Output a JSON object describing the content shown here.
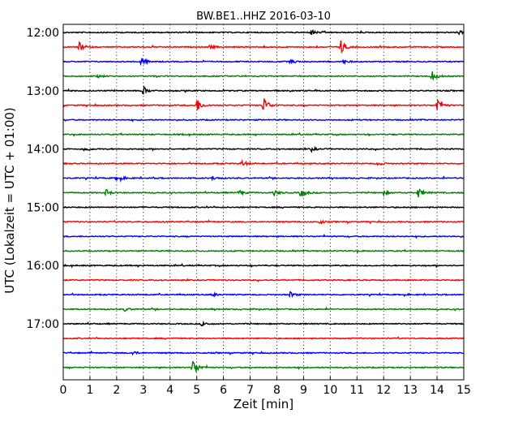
{
  "chart_data": {
    "type": "line",
    "title": "BW.BE1..HHZ 2016-03-10",
    "xlabel": "Zeit  [min]",
    "ylabel": "UTC (Lokalzeit = UTC + 01:00)",
    "xlim": [
      0,
      15
    ],
    "x_ticks": [
      "0",
      "1",
      "2",
      "3",
      "4",
      "5",
      "6",
      "7",
      "8",
      "9",
      "10",
      "11",
      "12",
      "13",
      "14",
      "15"
    ],
    "y_tick_labels": [
      "12:00",
      "13:00",
      "14:00",
      "15:00",
      "16:00",
      "17:00"
    ],
    "trace_times": [
      "12:00",
      "12:15",
      "12:30",
      "12:45",
      "13:00",
      "13:15",
      "13:30",
      "13:45",
      "14:00",
      "14:15",
      "14:30",
      "14:45",
      "15:00",
      "15:15",
      "15:30",
      "15:45",
      "16:00",
      "16:15",
      "16:30",
      "16:45",
      "17:00",
      "17:15",
      "17:30",
      "17:45"
    ],
    "trace_colors": [
      "#000000",
      "#ff0000",
      "#0000ff",
      "#008000"
    ],
    "grid": "vertical dotted at each minute",
    "events": [
      {
        "trace": "12:00",
        "minute": 9.3,
        "amplitude": 0.35
      },
      {
        "trace": "12:00",
        "minute": 14.8,
        "amplitude": 0.25
      },
      {
        "trace": "12:15",
        "minute": 0.6,
        "amplitude": 0.6
      },
      {
        "trace": "12:15",
        "minute": 10.4,
        "amplitude": 1.0
      },
      {
        "trace": "12:15",
        "minute": 5.5,
        "amplitude": 0.25
      },
      {
        "trace": "12:30",
        "minute": 2.9,
        "amplitude": 0.7
      },
      {
        "trace": "12:30",
        "minute": 8.5,
        "amplitude": 0.3
      },
      {
        "trace": "12:30",
        "minute": 10.5,
        "amplitude": 0.25
      },
      {
        "trace": "12:45",
        "minute": 13.8,
        "amplitude": 0.75
      },
      {
        "trace": "12:45",
        "minute": 1.3,
        "amplitude": 0.2
      },
      {
        "trace": "13:00",
        "minute": 3.0,
        "amplitude": 0.55
      },
      {
        "trace": "13:15",
        "minute": 5.0,
        "amplitude": 1.0
      },
      {
        "trace": "13:15",
        "minute": 7.5,
        "amplitude": 1.3
      },
      {
        "trace": "13:15",
        "minute": 14.0,
        "amplitude": 1.1
      },
      {
        "trace": "14:00",
        "minute": 0.8,
        "amplitude": 0.35
      },
      {
        "trace": "14:00",
        "minute": 9.3,
        "amplitude": 0.3
      },
      {
        "trace": "14:15",
        "minute": 6.7,
        "amplitude": 0.45
      },
      {
        "trace": "14:15",
        "minute": 11.8,
        "amplitude": 0.3
      },
      {
        "trace": "14:30",
        "minute": 2.0,
        "amplitude": 0.45
      },
      {
        "trace": "14:30",
        "minute": 5.6,
        "amplitude": 0.25
      },
      {
        "trace": "14:45",
        "minute": 1.6,
        "amplitude": 0.45
      },
      {
        "trace": "14:45",
        "minute": 6.6,
        "amplitude": 0.4
      },
      {
        "trace": "14:45",
        "minute": 7.9,
        "amplitude": 0.35
      },
      {
        "trace": "14:45",
        "minute": 8.9,
        "amplitude": 0.7
      },
      {
        "trace": "14:45",
        "minute": 12.0,
        "amplitude": 0.3
      },
      {
        "trace": "14:45",
        "minute": 13.3,
        "amplitude": 0.65
      },
      {
        "trace": "15:15",
        "minute": 9.6,
        "amplitude": 0.25
      },
      {
        "trace": "16:30",
        "minute": 5.6,
        "amplitude": 0.25
      },
      {
        "trace": "16:30",
        "minute": 8.5,
        "amplitude": 0.35
      },
      {
        "trace": "16:45",
        "minute": 2.3,
        "amplitude": 0.25
      },
      {
        "trace": "17:00",
        "minute": 5.2,
        "amplitude": 0.3
      },
      {
        "trace": "17:30",
        "minute": 2.6,
        "amplitude": 0.25
      },
      {
        "trace": "17:45",
        "minute": 4.85,
        "amplitude": 1.4
      }
    ]
  }
}
